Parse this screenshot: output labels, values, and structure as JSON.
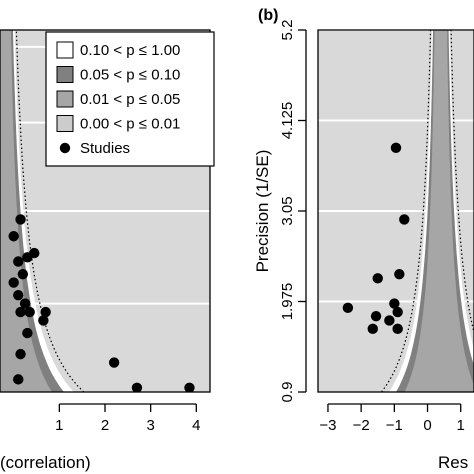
{
  "colors": {
    "background": "#d9d9d9",
    "p_0_10": "#ffffff",
    "p_0_05": "#808080",
    "p_0_01": "#a6a6a6",
    "p_0_00": "#cccccc",
    "points": "#000000",
    "gridline": "#ffffff"
  },
  "chart_data": [
    {
      "type": "scatter",
      "panel": "",
      "xlabel": "(correlation)",
      "ylabel": "",
      "xlim": [
        -0.3,
        4.3
      ],
      "ylim": [
        0.9,
        5.2
      ],
      "x_ticks": [
        "1",
        "2",
        "3",
        "4"
      ],
      "x_tick_values": [
        1,
        2,
        3,
        4
      ],
      "legend": {
        "placement": "top-right",
        "entries": [
          {
            "label": "0.10 < p ≤ 1.00",
            "swatch": "p_0_10"
          },
          {
            "label": "0.05 < p ≤ 0.10",
            "swatch": "p_0_05"
          },
          {
            "label": "0.01 < p ≤ 0.05",
            "swatch": "p_0_01"
          },
          {
            "label": "0.00 < p ≤ 0.01",
            "swatch": "p_0_00"
          },
          {
            "label": "Studies",
            "swatch": "points"
          }
        ]
      },
      "points": [
        {
          "x": 0.15,
          "y": 2.95
        },
        {
          "x": 0.0,
          "y": 2.75
        },
        {
          "x": 0.3,
          "y": 2.5
        },
        {
          "x": 0.45,
          "y": 2.55
        },
        {
          "x": 0.1,
          "y": 2.45
        },
        {
          "x": 0.2,
          "y": 2.3
        },
        {
          "x": 0.0,
          "y": 2.2
        },
        {
          "x": 0.1,
          "y": 2.05
        },
        {
          "x": 0.25,
          "y": 1.95
        },
        {
          "x": 0.15,
          "y": 1.85
        },
        {
          "x": 0.35,
          "y": 1.85
        },
        {
          "x": 0.7,
          "y": 1.85
        },
        {
          "x": 0.65,
          "y": 1.75
        },
        {
          "x": 0.3,
          "y": 1.6
        },
        {
          "x": 0.15,
          "y": 1.35
        },
        {
          "x": 0.1,
          "y": 1.05
        },
        {
          "x": 2.2,
          "y": 1.25
        },
        {
          "x": 2.7,
          "y": 0.95
        },
        {
          "x": 3.85,
          "y": 0.95
        }
      ]
    },
    {
      "type": "scatter",
      "panel": "(b)",
      "xlabel": "Res",
      "ylabel": "Precision (1/SE)",
      "xlim": [
        -3.3,
        1.4
      ],
      "ylim": [
        0.9,
        5.2
      ],
      "x_ticks": [
        "−3",
        "−2",
        "−1",
        "0",
        "1"
      ],
      "x_tick_values": [
        -3,
        -2,
        -1,
        0,
        1
      ],
      "y_ticks": [
        "0.9",
        "1.975",
        "3.05",
        "4.125",
        "5.2"
      ],
      "y_tick_values": [
        0.9,
        1.975,
        3.05,
        4.125,
        5.2
      ],
      "points": [
        {
          "x": -2.4,
          "y": 1.9
        },
        {
          "x": -1.5,
          "y": 2.25
        },
        {
          "x": -1.55,
          "y": 1.8
        },
        {
          "x": -1.65,
          "y": 1.65
        },
        {
          "x": -1.15,
          "y": 1.75
        },
        {
          "x": -1.0,
          "y": 1.95
        },
        {
          "x": -0.85,
          "y": 2.3
        },
        {
          "x": -0.9,
          "y": 1.85
        },
        {
          "x": -0.9,
          "y": 1.65
        },
        {
          "x": -0.7,
          "y": 2.95
        },
        {
          "x": -0.95,
          "y": 3.8
        }
      ]
    }
  ]
}
